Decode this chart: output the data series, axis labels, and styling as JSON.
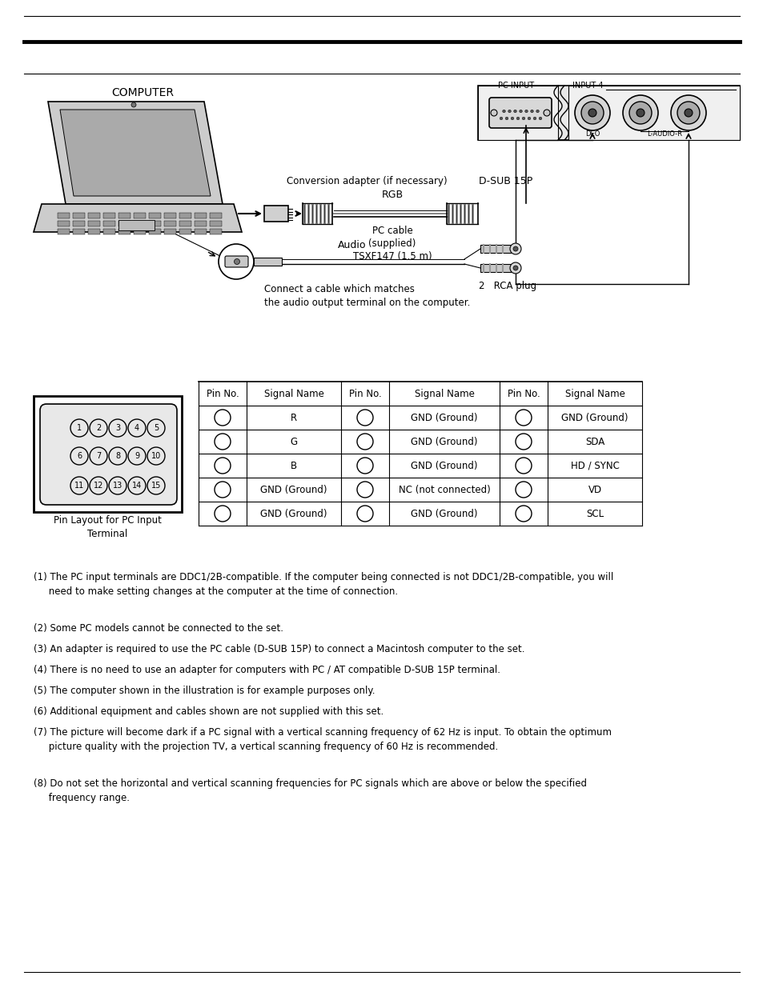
{
  "bg_color": "#ffffff",
  "notes": [
    "(1) The PC input terminals are DDC1/2B-compatible. If the computer being connected is not DDC1/2B-compatible, you will\n     need to make setting changes at the computer at the time of connection.",
    "(2) Some PC models cannot be connected to the set.",
    "(3) An adapter is required to use the PC cable (D-SUB 15P) to connect a Macintosh computer to the set.",
    "(4) There is no need to use an adapter for computers with PC / AT compatible D-SUB 15P terminal.",
    "(5) The computer shown in the illustration is for example purposes only.",
    "(6) Additional equipment and cables shown are not supplied with this set.",
    "(7) The picture will become dark if a PC signal with a vertical scanning frequency of 62 Hz is input. To obtain the optimum\n     picture quality with the projection TV, a vertical scanning frequency of 60 Hz is recommended.",
    "(8) Do not set the horizontal and vertical scanning frequencies for PC signals which are above or below the specified\n     frequency range."
  ],
  "pin_table_header": [
    "Pin No.",
    "Signal Name",
    "Pin No.",
    "Signal Name",
    "Pin No.",
    "Signal Name"
  ],
  "pin_table_rows": [
    [
      "",
      "R",
      "",
      "GND (Ground)",
      "",
      "GND (Ground)"
    ],
    [
      "",
      "G",
      "",
      "GND (Ground)",
      "",
      "SDA"
    ],
    [
      "",
      "B",
      "",
      "GND (Ground)",
      "",
      "HD / SYNC"
    ],
    [
      "",
      "GND (Ground)",
      "",
      "NC (not connected)",
      "",
      "VD"
    ],
    [
      "",
      "GND (Ground)",
      "",
      "GND (Ground)",
      "",
      "SCL"
    ]
  ]
}
